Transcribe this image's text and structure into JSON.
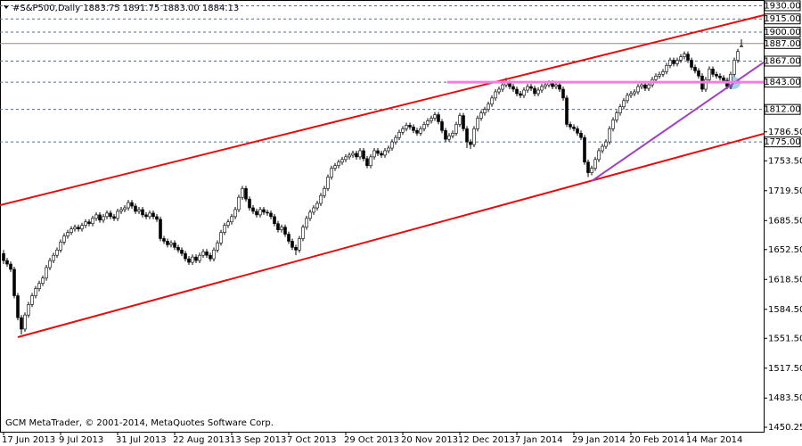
{
  "chart_data": {
    "type": "candlestick",
    "title": "#S&P500,Daily  1883.75 1891.75 1883.00 1884.13",
    "footer": "GCM MetaTrader, © 2001-2014, MetaQuotes Software Corp.",
    "xlim": [
      -1,
      213.25
    ],
    "xticks": [
      {
        "value": 0,
        "label": "17 Jun 2013"
      },
      {
        "value": 16,
        "label": "9 Jul 2013"
      },
      {
        "value": 32,
        "label": "31 Jul 2013"
      },
      {
        "value": 48,
        "label": "22 Aug 2013"
      },
      {
        "value": 64,
        "label": "13 Sep 2013"
      },
      {
        "value": 80,
        "label": "7 Oct 2013"
      },
      {
        "value": 96,
        "label": "29 Oct 2013"
      },
      {
        "value": 112,
        "label": "20 Nov 2013"
      },
      {
        "value": 128,
        "label": "12 Dec 2013"
      },
      {
        "value": 144,
        "label": "7 Jan 2014"
      },
      {
        "value": 160,
        "label": "29 Jan 2014"
      },
      {
        "value": 176,
        "label": "20 Feb 2014"
      },
      {
        "value": 192,
        "label": "14 Mar 2014"
      }
    ],
    "ylim": [
      1445.17,
      1936.55
    ],
    "yticks": [
      {
        "value": 1786.5,
        "label": "1786.50"
      },
      {
        "value": 1753.5,
        "label": "1753.50"
      },
      {
        "value": 1719.5,
        "label": "1719.50"
      },
      {
        "value": 1685.5,
        "label": "1685.50"
      },
      {
        "value": 1652.5,
        "label": "1652.50"
      },
      {
        "value": 1618.5,
        "label": "1618.50"
      },
      {
        "value": 1584.5,
        "label": "1584.50"
      },
      {
        "value": 1551.5,
        "label": "1551.50"
      },
      {
        "value": 1517.5,
        "label": "1517.50"
      },
      {
        "value": 1483.5,
        "label": "1483.50"
      },
      {
        "value": 1450.25,
        "label": "1450.25"
      }
    ],
    "levels": [
      {
        "value": 1930,
        "label": "1930.00",
        "color": "#5a6a8c",
        "style": "dashed"
      },
      {
        "value": 1915,
        "label": "1915.00",
        "color": "#5a6a8c",
        "style": "dashed"
      },
      {
        "value": 1900,
        "label": "1900.00",
        "color": "#5a6a8c",
        "style": "dashed"
      },
      {
        "value": 1887,
        "label": "1887.00",
        "color": "#8c8c8c",
        "style": "solid"
      },
      {
        "value": 1867,
        "label": "1867.00",
        "color": "#5a6a8c",
        "style": "dashed"
      },
      {
        "value": 1843,
        "label": "1843.00",
        "color": "#5a6a8c",
        "style": "dashed"
      },
      {
        "value": 1812,
        "label": "1812.00",
        "color": "#5a6a8c",
        "style": "dashed"
      },
      {
        "value": 1775,
        "label": "1775.00",
        "color": "#5a6a8c",
        "style": "dashed"
      }
    ],
    "trendlines": [
      {
        "x": [
          -1,
          213.25
        ],
        "y": [
          1703,
          1919.3
        ],
        "color": "#e01010",
        "width": 2
      },
      {
        "x": [
          4,
          213.25
        ],
        "y": [
          1552.8,
          1784.3
        ],
        "color": "#e01010",
        "width": 2
      },
      {
        "x": [
          165,
          213.25
        ],
        "y": [
          1730.5,
          1865.5
        ],
        "color": "#a040c0",
        "width": 2
      },
      {
        "x": [
          124.5,
          213.25
        ],
        "y": [
          1843,
          1843
        ],
        "color": "#f080e0",
        "width": 3
      }
    ],
    "candles": [
      [
        1648,
        1652,
        1636,
        1640
      ],
      [
        1640,
        1643,
        1633,
        1636
      ],
      [
        1636,
        1639,
        1627,
        1630
      ],
      [
        1630,
        1633,
        1597,
        1600
      ],
      [
        1600,
        1603,
        1572,
        1575
      ],
      [
        1575,
        1578,
        1556,
        1562
      ],
      [
        1562,
        1581,
        1559,
        1578
      ],
      [
        1578,
        1593,
        1575,
        1590
      ],
      [
        1590,
        1603,
        1587,
        1600
      ],
      [
        1600,
        1611,
        1597,
        1608
      ],
      [
        1608,
        1617,
        1605,
        1614
      ],
      [
        1614,
        1623,
        1611,
        1620
      ],
      [
        1620,
        1635,
        1617,
        1632
      ],
      [
        1632,
        1643,
        1629,
        1640
      ],
      [
        1640,
        1649,
        1637,
        1646
      ],
      [
        1646,
        1655,
        1643,
        1652
      ],
      [
        1652,
        1664,
        1649,
        1661
      ],
      [
        1661,
        1671,
        1658,
        1668
      ],
      [
        1668,
        1675,
        1665,
        1672
      ],
      [
        1672,
        1679,
        1669,
        1676
      ],
      [
        1676,
        1681,
        1673,
        1678
      ],
      [
        1678,
        1681,
        1673,
        1676
      ],
      [
        1676,
        1683,
        1673,
        1680
      ],
      [
        1680,
        1687,
        1677,
        1684
      ],
      [
        1684,
        1687,
        1679,
        1682
      ],
      [
        1682,
        1691,
        1679,
        1688
      ],
      [
        1688,
        1695,
        1685,
        1692
      ],
      [
        1692,
        1695,
        1683,
        1686
      ],
      [
        1686,
        1693,
        1683,
        1690
      ],
      [
        1690,
        1697,
        1687,
        1694
      ],
      [
        1694,
        1697,
        1687,
        1690
      ],
      [
        1690,
        1693,
        1685,
        1688
      ],
      [
        1688,
        1699,
        1685,
        1696
      ],
      [
        1696,
        1701,
        1693,
        1698
      ],
      [
        1698,
        1703,
        1695,
        1700
      ],
      [
        1700,
        1709,
        1697,
        1706
      ],
      [
        1706,
        1709,
        1699,
        1702
      ],
      [
        1702,
        1705,
        1693,
        1696
      ],
      [
        1696,
        1701,
        1693,
        1698
      ],
      [
        1698,
        1701,
        1689,
        1692
      ],
      [
        1692,
        1695,
        1687,
        1690
      ],
      [
        1690,
        1697,
        1687,
        1694
      ],
      [
        1694,
        1697,
        1687,
        1690
      ],
      [
        1690,
        1693,
        1684,
        1687
      ],
      [
        1687,
        1690,
        1662,
        1665
      ],
      [
        1665,
        1668,
        1659,
        1662
      ],
      [
        1662,
        1665,
        1655,
        1658
      ],
      [
        1658,
        1663,
        1655,
        1660
      ],
      [
        1660,
        1663,
        1652,
        1655
      ],
      [
        1655,
        1658,
        1649,
        1652
      ],
      [
        1652,
        1655,
        1645,
        1648
      ],
      [
        1648,
        1651,
        1639,
        1642
      ],
      [
        1642,
        1645,
        1635,
        1638
      ],
      [
        1638,
        1647,
        1635,
        1644
      ],
      [
        1644,
        1647,
        1637,
        1640
      ],
      [
        1640,
        1649,
        1637,
        1646
      ],
      [
        1646,
        1653,
        1643,
        1650
      ],
      [
        1650,
        1653,
        1643,
        1646
      ],
      [
        1646,
        1649,
        1639,
        1642
      ],
      [
        1642,
        1655,
        1639,
        1652
      ],
      [
        1652,
        1663,
        1649,
        1660
      ],
      [
        1660,
        1675,
        1657,
        1672
      ],
      [
        1672,
        1683,
        1669,
        1680
      ],
      [
        1680,
        1687,
        1677,
        1684
      ],
      [
        1684,
        1693,
        1681,
        1690
      ],
      [
        1690,
        1701,
        1687,
        1698
      ],
      [
        1698,
        1715,
        1695,
        1712
      ],
      [
        1712,
        1725,
        1709,
        1722
      ],
      [
        1722,
        1725,
        1707,
        1710
      ],
      [
        1710,
        1713,
        1697,
        1700
      ],
      [
        1700,
        1703,
        1693,
        1696
      ],
      [
        1696,
        1699,
        1689,
        1692
      ],
      [
        1692,
        1701,
        1689,
        1698
      ],
      [
        1698,
        1701,
        1692,
        1695
      ],
      [
        1695,
        1698,
        1691,
        1694
      ],
      [
        1694,
        1697,
        1687,
        1690
      ],
      [
        1690,
        1693,
        1679,
        1682
      ],
      [
        1682,
        1685,
        1672,
        1675
      ],
      [
        1675,
        1681,
        1672,
        1678
      ],
      [
        1678,
        1681,
        1667,
        1670
      ],
      [
        1670,
        1673,
        1659,
        1662
      ],
      [
        1662,
        1665,
        1652,
        1655
      ],
      [
        1655,
        1658,
        1646,
        1652
      ],
      [
        1652,
        1668,
        1649,
        1665
      ],
      [
        1665,
        1681,
        1662,
        1678
      ],
      [
        1678,
        1691,
        1675,
        1688
      ],
      [
        1688,
        1698,
        1685,
        1695
      ],
      [
        1695,
        1703,
        1692,
        1700
      ],
      [
        1700,
        1708,
        1697,
        1705
      ],
      [
        1705,
        1717,
        1702,
        1714
      ],
      [
        1714,
        1725,
        1711,
        1722
      ],
      [
        1722,
        1738,
        1719,
        1735
      ],
      [
        1735,
        1748,
        1732,
        1745
      ],
      [
        1745,
        1751,
        1742,
        1748
      ],
      [
        1748,
        1755,
        1745,
        1752
      ],
      [
        1752,
        1758,
        1749,
        1755
      ],
      [
        1755,
        1761,
        1752,
        1758
      ],
      [
        1758,
        1763,
        1755,
        1760
      ],
      [
        1760,
        1765,
        1757,
        1762
      ],
      [
        1762,
        1765,
        1755,
        1758
      ],
      [
        1758,
        1768,
        1755,
        1765
      ],
      [
        1765,
        1768,
        1753,
        1756
      ],
      [
        1756,
        1759,
        1745,
        1748
      ],
      [
        1748,
        1761,
        1745,
        1758
      ],
      [
        1758,
        1768,
        1755,
        1765
      ],
      [
        1765,
        1768,
        1759,
        1762
      ],
      [
        1762,
        1765,
        1757,
        1760
      ],
      [
        1760,
        1768,
        1757,
        1765
      ],
      [
        1765,
        1771,
        1762,
        1768
      ],
      [
        1768,
        1778,
        1765,
        1775
      ],
      [
        1775,
        1783,
        1772,
        1780
      ],
      [
        1780,
        1789,
        1777,
        1786
      ],
      [
        1786,
        1793,
        1783,
        1790
      ],
      [
        1790,
        1797,
        1787,
        1794
      ],
      [
        1794,
        1797,
        1789,
        1792
      ],
      [
        1792,
        1795,
        1785,
        1788
      ],
      [
        1788,
        1791,
        1782,
        1785
      ],
      [
        1785,
        1793,
        1782,
        1790
      ],
      [
        1790,
        1798,
        1787,
        1795
      ],
      [
        1795,
        1802,
        1792,
        1799
      ],
      [
        1799,
        1805,
        1796,
        1802
      ],
      [
        1802,
        1809,
        1799,
        1806
      ],
      [
        1806,
        1809,
        1795,
        1798
      ],
      [
        1798,
        1801,
        1785,
        1788
      ],
      [
        1788,
        1791,
        1775,
        1778
      ],
      [
        1778,
        1785,
        1775,
        1782
      ],
      [
        1782,
        1788,
        1779,
        1785
      ],
      [
        1785,
        1798,
        1782,
        1795
      ],
      [
        1795,
        1808,
        1792,
        1805
      ],
      [
        1805,
        1808,
        1787,
        1790
      ],
      [
        1790,
        1793,
        1768,
        1775
      ],
      [
        1775,
        1778,
        1767,
        1772
      ],
      [
        1772,
        1793,
        1769,
        1790
      ],
      [
        1790,
        1805,
        1787,
        1802
      ],
      [
        1802,
        1811,
        1799,
        1808
      ],
      [
        1808,
        1815,
        1805,
        1812
      ],
      [
        1812,
        1821,
        1809,
        1818
      ],
      [
        1818,
        1828,
        1815,
        1825
      ],
      [
        1825,
        1835,
        1822,
        1832
      ],
      [
        1832,
        1838,
        1829,
        1835
      ],
      [
        1835,
        1843,
        1832,
        1840
      ],
      [
        1840,
        1848,
        1837,
        1842
      ],
      [
        1842,
        1845,
        1835,
        1838
      ],
      [
        1838,
        1841,
        1832,
        1835
      ],
      [
        1835,
        1838,
        1827,
        1830
      ],
      [
        1830,
        1833,
        1825,
        1828
      ],
      [
        1828,
        1837,
        1825,
        1834
      ],
      [
        1834,
        1841,
        1831,
        1838
      ],
      [
        1838,
        1841,
        1833,
        1836
      ],
      [
        1836,
        1839,
        1827,
        1830
      ],
      [
        1830,
        1837,
        1827,
        1834
      ],
      [
        1834,
        1841,
        1831,
        1838
      ],
      [
        1838,
        1843,
        1835,
        1840
      ],
      [
        1840,
        1845,
        1837,
        1842
      ],
      [
        1842,
        1845,
        1835,
        1838
      ],
      [
        1838,
        1843,
        1835,
        1840
      ],
      [
        1840,
        1843,
        1832,
        1835
      ],
      [
        1835,
        1838,
        1822,
        1825
      ],
      [
        1825,
        1828,
        1792,
        1795
      ],
      [
        1795,
        1798,
        1789,
        1792
      ],
      [
        1792,
        1795,
        1787,
        1790
      ],
      [
        1790,
        1793,
        1782,
        1785
      ],
      [
        1785,
        1788,
        1777,
        1780
      ],
      [
        1780,
        1783,
        1749,
        1752
      ],
      [
        1752,
        1755,
        1735,
        1740
      ],
      [
        1740,
        1748,
        1737,
        1745
      ],
      [
        1745,
        1758,
        1742,
        1755
      ],
      [
        1755,
        1768,
        1752,
        1765
      ],
      [
        1765,
        1773,
        1762,
        1770
      ],
      [
        1770,
        1778,
        1767,
        1775
      ],
      [
        1775,
        1793,
        1772,
        1790
      ],
      [
        1790,
        1803,
        1787,
        1800
      ],
      [
        1800,
        1811,
        1797,
        1808
      ],
      [
        1808,
        1818,
        1805,
        1815
      ],
      [
        1815,
        1825,
        1812,
        1822
      ],
      [
        1822,
        1831,
        1819,
        1828
      ],
      [
        1828,
        1833,
        1825,
        1830
      ],
      [
        1830,
        1835,
        1827,
        1832
      ],
      [
        1832,
        1841,
        1829,
        1838
      ],
      [
        1838,
        1843,
        1835,
        1840
      ],
      [
        1840,
        1843,
        1833,
        1836
      ],
      [
        1836,
        1843,
        1833,
        1840
      ],
      [
        1840,
        1849,
        1837,
        1846
      ],
      [
        1846,
        1853,
        1843,
        1850
      ],
      [
        1850,
        1855,
        1847,
        1852
      ],
      [
        1852,
        1858,
        1849,
        1855
      ],
      [
        1855,
        1865,
        1852,
        1862
      ],
      [
        1862,
        1871,
        1859,
        1868
      ],
      [
        1868,
        1871,
        1861,
        1864
      ],
      [
        1864,
        1871,
        1861,
        1868
      ],
      [
        1868,
        1875,
        1865,
        1872
      ],
      [
        1872,
        1878,
        1869,
        1875
      ],
      [
        1875,
        1878,
        1865,
        1868
      ],
      [
        1868,
        1871,
        1857,
        1860
      ],
      [
        1860,
        1863,
        1853,
        1856
      ],
      [
        1856,
        1859,
        1847,
        1850
      ],
      [
        1850,
        1853,
        1832,
        1835
      ],
      [
        1835,
        1849,
        1832,
        1846
      ],
      [
        1846,
        1861,
        1843,
        1858
      ],
      [
        1858,
        1861,
        1849,
        1852
      ],
      [
        1852,
        1855,
        1847,
        1850
      ],
      [
        1850,
        1853,
        1845,
        1848
      ],
      [
        1848,
        1851,
        1842,
        1845
      ],
      [
        1845,
        1848,
        1835,
        1838
      ],
      [
        1838,
        1855,
        1835,
        1852
      ],
      [
        1852,
        1871,
        1849,
        1868
      ],
      [
        1868,
        1881,
        1865,
        1878
      ],
      [
        1883.75,
        1891.75,
        1883,
        1884.13
      ]
    ]
  }
}
